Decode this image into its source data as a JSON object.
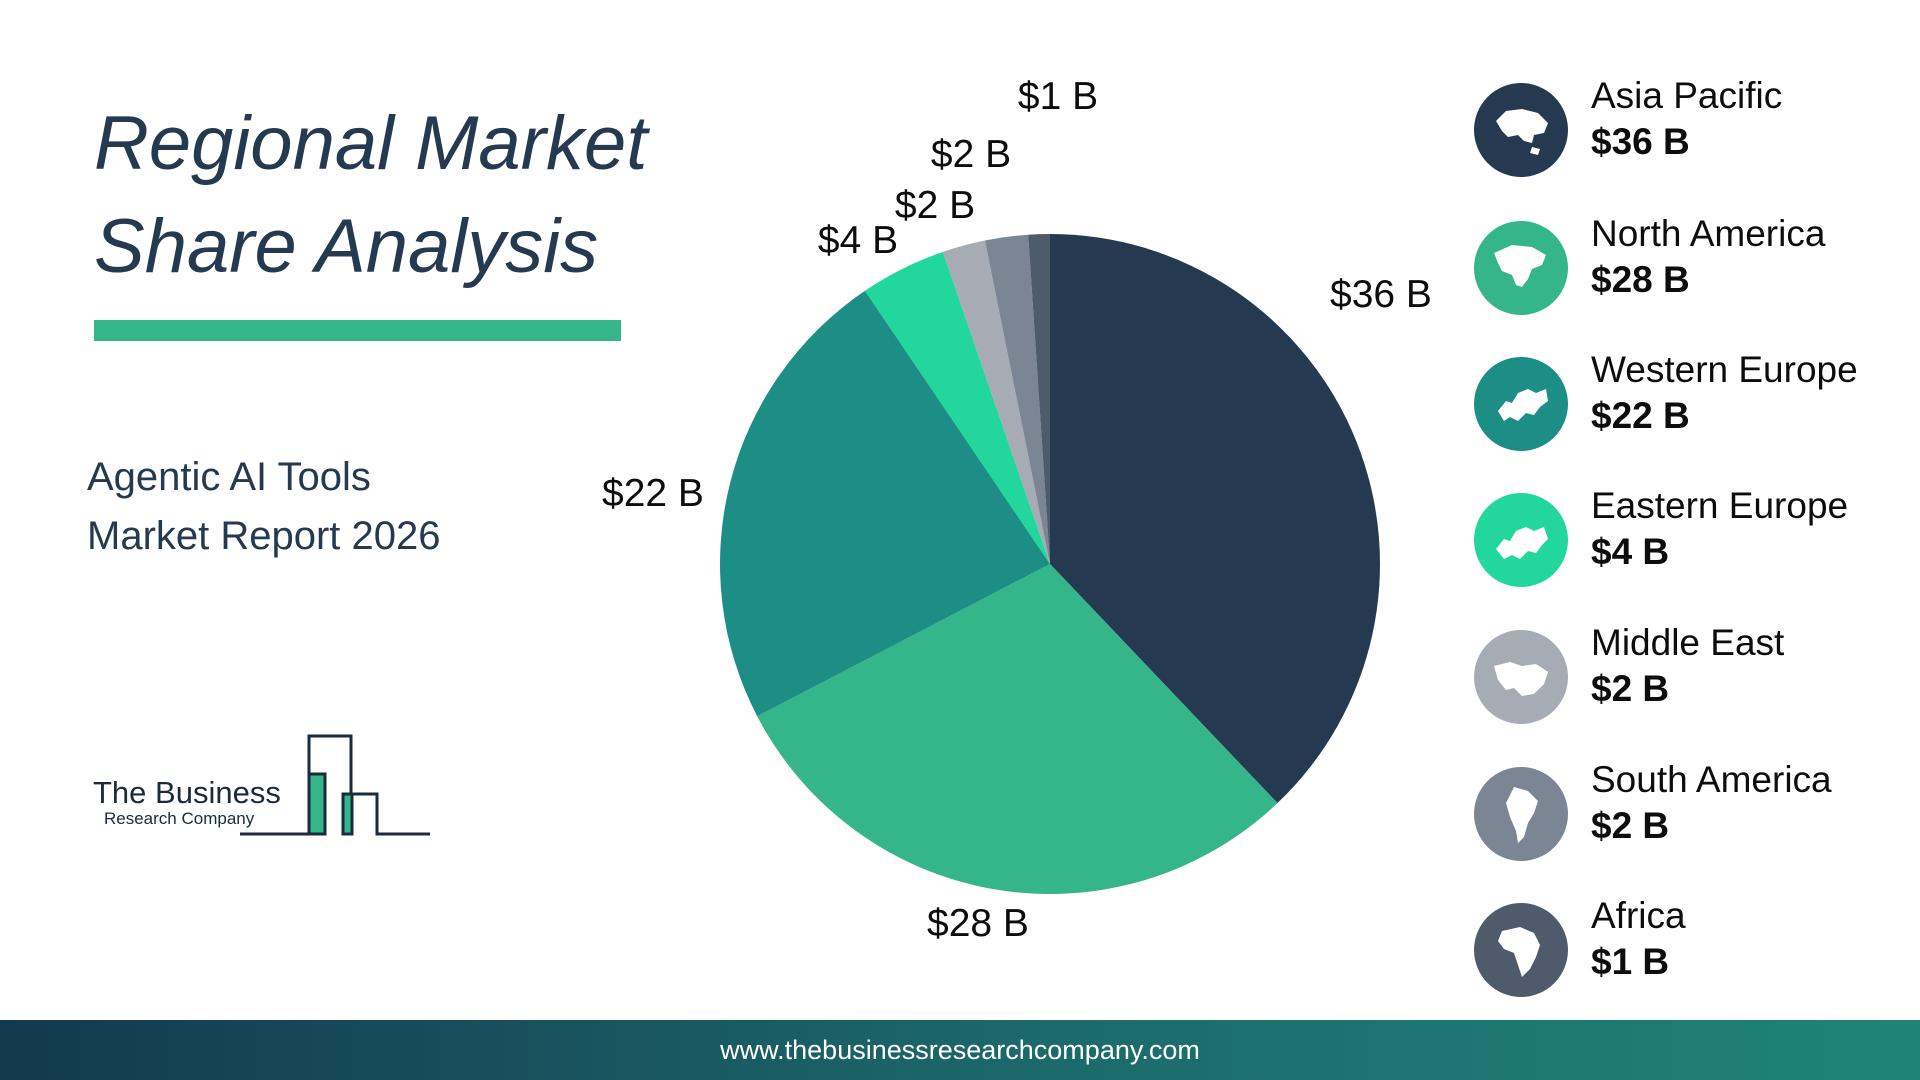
{
  "header": {
    "title_line1": "Regional Market",
    "title_line2": "Share Analysis"
  },
  "subtitle": {
    "line1": "Agentic AI Tools",
    "line2": "Market Report 2026"
  },
  "logo": {
    "name": "The Business",
    "tagline": "Research Company"
  },
  "chart_data": {
    "type": "pie",
    "title": "",
    "categories": [
      "Asia Pacific",
      "North America",
      "Western Europe",
      "Eastern Europe",
      "Middle East",
      "South America",
      "Africa"
    ],
    "values": [
      36,
      28,
      22,
      4,
      2,
      2,
      1
    ],
    "unit": "$ B",
    "slice_labels": [
      "$36 B",
      "$28 B",
      "$22 B",
      "$4 B",
      "$2 B",
      "$2 B",
      "$1 B"
    ],
    "colors": [
      "#253a50",
      "#35b58a",
      "#1c8e86",
      "#22d79b",
      "#a7abb4",
      "#7b8594",
      "#4e5b6a"
    ],
    "start": "12 o'clock",
    "direction": "clockwise",
    "legend_placement": "right"
  },
  "legend": [
    {
      "name": "Asia Pacific",
      "value": "$36 B",
      "icon": "asia-map-icon",
      "color": "#253a50"
    },
    {
      "name": "North America",
      "value": "$28 B",
      "icon": "north-america-map-icon",
      "color": "#35b58a"
    },
    {
      "name": "Western Europe",
      "value": "$22 B",
      "icon": "western-europe-map-icon",
      "color": "#1c8e86"
    },
    {
      "name": "Eastern Europe",
      "value": "$4 B",
      "icon": "eastern-europe-map-icon",
      "color": "#22d79b"
    },
    {
      "name": "Middle East",
      "value": "$2 B",
      "icon": "middle-east-map-icon",
      "color": "#a7abb4"
    },
    {
      "name": "South America",
      "value": "$2 B",
      "icon": "south-america-map-icon",
      "color": "#7b8594"
    },
    {
      "name": "Africa",
      "value": "$1 B",
      "icon": "africa-map-icon",
      "color": "#4e5b6a"
    }
  ],
  "footer": {
    "url": "www.thebusinessresearchcompany.com"
  }
}
